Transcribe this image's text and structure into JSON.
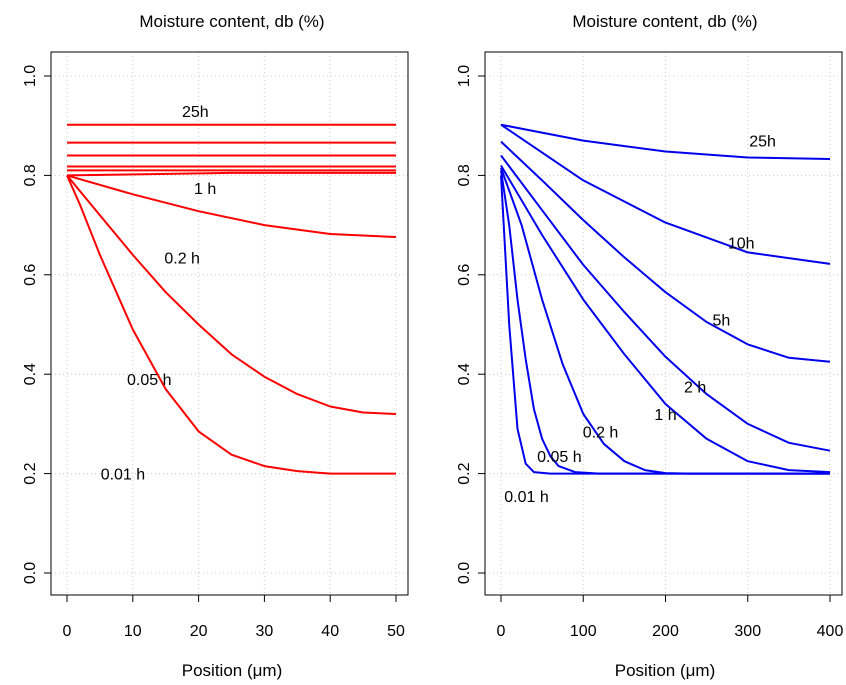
{
  "chart_data": [
    {
      "type": "line",
      "title": "Moisture content, db (%)",
      "xlabel": "Position (μm)",
      "ylabel": "",
      "xlim": [
        0,
        50
      ],
      "ylim": [
        0,
        1
      ],
      "xticks": [
        "0",
        "10",
        "20",
        "30",
        "40",
        "50"
      ],
      "yticks": [
        "0.0",
        "0.2",
        "0.4",
        "0.6",
        "0.8",
        "1.0"
      ],
      "grid": "dotted",
      "color": "#ff0000",
      "series": [
        {
          "label": "0.01 h",
          "label_at": [
            8.5,
            0.2
          ],
          "points": [
            [
              0,
              0.8
            ],
            [
              2,
              0.74
            ],
            [
              5,
              0.64
            ],
            [
              10,
              0.49
            ],
            [
              15,
              0.37
            ],
            [
              20,
              0.285
            ],
            [
              25,
              0.238
            ],
            [
              30,
              0.215
            ],
            [
              35,
              0.205
            ],
            [
              40,
              0.2
            ],
            [
              45,
              0.2
            ],
            [
              50,
              0.2
            ]
          ]
        },
        {
          "label": "0.05 h",
          "label_at": [
            12.5,
            0.39
          ],
          "points": [
            [
              0,
              0.8
            ],
            [
              5,
              0.72
            ],
            [
              10,
              0.64
            ],
            [
              15,
              0.565
            ],
            [
              20,
              0.5
            ],
            [
              25,
              0.44
            ],
            [
              30,
              0.395
            ],
            [
              35,
              0.36
            ],
            [
              40,
              0.335
            ],
            [
              45,
              0.323
            ],
            [
              50,
              0.32
            ]
          ]
        },
        {
          "label": "0.2 h",
          "label_at": [
            17.5,
            0.635
          ],
          "points": [
            [
              0,
              0.8
            ],
            [
              10,
              0.762
            ],
            [
              20,
              0.728
            ],
            [
              30,
              0.7
            ],
            [
              40,
              0.682
            ],
            [
              50,
              0.676
            ]
          ]
        },
        {
          "label": "1 h",
          "label_at": [
            21,
            0.775
          ],
          "points": [
            [
              0,
              0.8
            ],
            [
              25,
              0.805
            ],
            [
              50,
              0.805
            ]
          ]
        },
        {
          "label": "",
          "points": [
            [
              0,
              0.81
            ],
            [
              50,
              0.81
            ]
          ]
        },
        {
          "label": "",
          "points": [
            [
              0,
              0.818
            ],
            [
              50,
              0.818
            ]
          ]
        },
        {
          "label": "",
          "points": [
            [
              0,
              0.84
            ],
            [
              50,
              0.84
            ]
          ]
        },
        {
          "label": "",
          "points": [
            [
              0,
              0.866
            ],
            [
              50,
              0.866
            ]
          ]
        },
        {
          "label": "25h",
          "label_at": [
            19.5,
            0.93
          ],
          "points": [
            [
              0,
              0.902
            ],
            [
              50,
              0.902
            ]
          ]
        }
      ]
    },
    {
      "type": "line",
      "title": "Moisture content, db (%)",
      "xlabel": "Position (μm)",
      "ylabel": "",
      "xlim": [
        0,
        400
      ],
      "ylim": [
        0,
        1
      ],
      "xticks": [
        "0",
        "100",
        "200",
        "300",
        "400"
      ],
      "yticks": [
        "0.0",
        "0.2",
        "0.4",
        "0.6",
        "0.8",
        "1.0"
      ],
      "grid": "dotted",
      "color": "#0000ee",
      "series": [
        {
          "label": "0.01 h",
          "label_at": [
            31,
            0.155
          ],
          "points": [
            [
              0,
              0.8
            ],
            [
              10,
              0.5
            ],
            [
              20,
              0.29
            ],
            [
              30,
              0.22
            ],
            [
              40,
              0.203
            ],
            [
              60,
              0.2
            ],
            [
              400,
              0.2
            ]
          ]
        },
        {
          "label": "0.05 h",
          "label_at": [
            71,
            0.235
          ],
          "points": [
            [
              0,
              0.81
            ],
            [
              10,
              0.7
            ],
            [
              20,
              0.55
            ],
            [
              30,
              0.43
            ],
            [
              40,
              0.33
            ],
            [
              50,
              0.27
            ],
            [
              60,
              0.235
            ],
            [
              70,
              0.215
            ],
            [
              90,
              0.203
            ],
            [
              120,
              0.2
            ],
            [
              400,
              0.2
            ]
          ]
        },
        {
          "label": "0.2 h",
          "label_at": [
            121,
            0.285
          ],
          "points": [
            [
              0,
              0.815
            ],
            [
              25,
              0.7
            ],
            [
              50,
              0.55
            ],
            [
              75,
              0.42
            ],
            [
              100,
              0.32
            ],
            [
              125,
              0.26
            ],
            [
              150,
              0.225
            ],
            [
              175,
              0.207
            ],
            [
              200,
              0.201
            ],
            [
              230,
              0.2
            ],
            [
              400,
              0.2
            ]
          ]
        },
        {
          "label": "1 h",
          "label_at": [
            200,
            0.32
          ],
          "points": [
            [
              0,
              0.82
            ],
            [
              50,
              0.68
            ],
            [
              100,
              0.55
            ],
            [
              150,
              0.44
            ],
            [
              200,
              0.34
            ],
            [
              250,
              0.27
            ],
            [
              300,
              0.225
            ],
            [
              350,
              0.207
            ],
            [
              400,
              0.203
            ]
          ]
        },
        {
          "label": "2 h",
          "label_at": [
            236,
            0.375
          ],
          "points": [
            [
              0,
              0.84
            ],
            [
              50,
              0.73
            ],
            [
              100,
              0.62
            ],
            [
              150,
              0.525
            ],
            [
              200,
              0.435
            ],
            [
              250,
              0.36
            ],
            [
              300,
              0.3
            ],
            [
              350,
              0.262
            ],
            [
              400,
              0.246
            ]
          ]
        },
        {
          "label": "5h",
          "label_at": [
            268,
            0.51
          ],
          "points": [
            [
              0,
              0.868
            ],
            [
              50,
              0.79
            ],
            [
              100,
              0.71
            ],
            [
              150,
              0.635
            ],
            [
              200,
              0.565
            ],
            [
              250,
              0.505
            ],
            [
              300,
              0.46
            ],
            [
              350,
              0.433
            ],
            [
              400,
              0.425
            ]
          ]
        },
        {
          "label": "10h",
          "label_at": [
            292,
            0.665
          ],
          "points": [
            [
              0,
              0.902
            ],
            [
              100,
              0.79
            ],
            [
              200,
              0.705
            ],
            [
              300,
              0.645
            ],
            [
              400,
              0.622
            ]
          ]
        },
        {
          "label": "25h",
          "label_at": [
            318,
            0.87
          ],
          "points": [
            [
              0,
              0.902
            ],
            [
              100,
              0.87
            ],
            [
              200,
              0.848
            ],
            [
              300,
              0.836
            ],
            [
              400,
              0.833
            ]
          ]
        }
      ]
    }
  ]
}
